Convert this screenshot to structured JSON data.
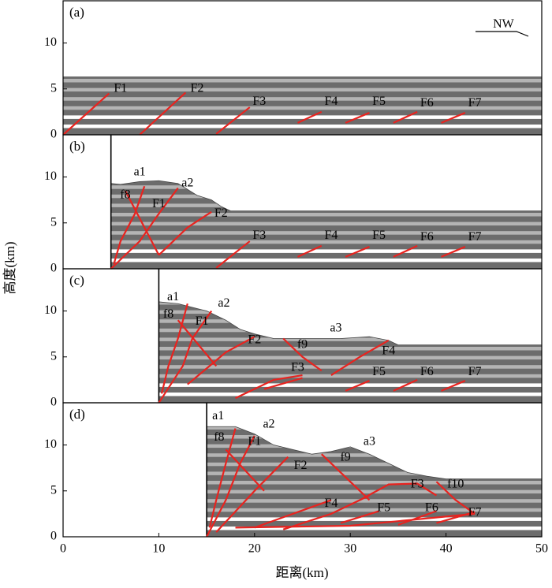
{
  "xlabel": "距离(km)",
  "ylabel": "高度(km)",
  "chart_data": [
    {
      "type": "section",
      "panel": "(a)",
      "xlim": [
        0,
        50
      ],
      "ylim": [
        0,
        14.6
      ],
      "yticks": [
        0,
        5,
        10
      ],
      "xticks": [],
      "surface": {
        "x": [
          0,
          50
        ],
        "y": [
          6.3,
          6.3
        ]
      },
      "annotations": [
        {
          "text": "NW",
          "x": 46,
          "y": 12
        },
        {
          "text": "F1",
          "x": 6,
          "y": 5
        },
        {
          "text": "F2",
          "x": 14,
          "y": 5
        },
        {
          "text": "F3",
          "x": 20.5,
          "y": 3.6
        },
        {
          "text": "F4",
          "x": 28,
          "y": 3.6
        },
        {
          "text": "F5",
          "x": 33,
          "y": 3.6
        },
        {
          "text": "F6",
          "x": 38,
          "y": 3.4
        },
        {
          "text": "F7",
          "x": 43,
          "y": 3.4
        }
      ],
      "faults": [
        {
          "x": [
            0,
            4.8
          ],
          "y": [
            0,
            4.5
          ]
        },
        {
          "x": [
            8,
            12.8
          ],
          "y": [
            0,
            4.6
          ]
        },
        {
          "x": [
            16,
            19.5
          ],
          "y": [
            0.1,
            3
          ]
        },
        {
          "x": [
            24.5,
            27
          ],
          "y": [
            1.3,
            2.5
          ]
        },
        {
          "x": [
            29.5,
            32
          ],
          "y": [
            1.3,
            2.4
          ]
        },
        {
          "x": [
            34.5,
            37
          ],
          "y": [
            1.3,
            2.5
          ]
        },
        {
          "x": [
            39.5,
            42
          ],
          "y": [
            1.3,
            2.4
          ]
        }
      ]
    },
    {
      "type": "section",
      "panel": "(b)",
      "xlim": [
        0,
        50
      ],
      "ylim": [
        0,
        14.6
      ],
      "yticks": [
        0,
        5,
        10
      ],
      "xticks": [],
      "wall_x": 5,
      "surface": {
        "x": [
          5,
          6,
          8,
          10,
          12,
          14,
          15.5,
          16.5,
          17.5,
          50
        ],
        "y": [
          9.3,
          9.2,
          9.5,
          9.6,
          9.3,
          8,
          7.5,
          6.8,
          6.3,
          6.3
        ]
      },
      "annotations": [
        {
          "text": "a1",
          "x": 8,
          "y": 10.5
        },
        {
          "text": "a2",
          "x": 13,
          "y": 9.3
        },
        {
          "text": "f8",
          "x": 6.5,
          "y": 8
        },
        {
          "text": "F1",
          "x": 10,
          "y": 7
        },
        {
          "text": "F2",
          "x": 16.5,
          "y": 6
        },
        {
          "text": "F3",
          "x": 20.5,
          "y": 3.6
        },
        {
          "text": "F4",
          "x": 28,
          "y": 3.6
        },
        {
          "text": "F5",
          "x": 33,
          "y": 3.6
        },
        {
          "text": "F6",
          "x": 38,
          "y": 3.4
        },
        {
          "text": "F7",
          "x": 43,
          "y": 3.4
        }
      ],
      "faults": [
        {
          "x": [
            5.3,
            6,
            7.5,
            8.5
          ],
          "y": [
            0.5,
            3,
            6,
            9
          ]
        },
        {
          "x": [
            5,
            8,
            10,
            12
          ],
          "y": [
            0,
            3,
            6,
            8.8
          ]
        },
        {
          "x": [
            10,
            13,
            15.5
          ],
          "y": [
            1.5,
            4.5,
            6.2
          ]
        },
        {
          "x": [
            6.5,
            10
          ],
          "y": [
            8.5,
            1.5
          ]
        },
        {
          "x": [
            16,
            19.5
          ],
          "y": [
            0.1,
            3
          ]
        },
        {
          "x": [
            24.5,
            27
          ],
          "y": [
            1.3,
            2.5
          ]
        },
        {
          "x": [
            29.5,
            32
          ],
          "y": [
            1.3,
            2.4
          ]
        },
        {
          "x": [
            34.5,
            37
          ],
          "y": [
            1.3,
            2.5
          ]
        },
        {
          "x": [
            39.5,
            42
          ],
          "y": [
            1.3,
            2.4
          ]
        }
      ]
    },
    {
      "type": "section",
      "panel": "(c)",
      "xlim": [
        0,
        50
      ],
      "ylim": [
        0,
        14.6
      ],
      "yticks": [
        0,
        5,
        10
      ],
      "xticks": [],
      "wall_x": 10,
      "surface": {
        "x": [
          10,
          12,
          15,
          17,
          18.5,
          20,
          22,
          25,
          29,
          32,
          34,
          35,
          50
        ],
        "y": [
          11,
          10.8,
          10,
          9,
          8,
          7.5,
          7,
          7,
          7,
          7.2,
          6.8,
          6.3,
          6.3
        ]
      },
      "annotations": [
        {
          "text": "a1",
          "x": 11.5,
          "y": 11.5
        },
        {
          "text": "a2",
          "x": 16.8,
          "y": 10.8
        },
        {
          "text": "f8",
          "x": 11,
          "y": 9.6
        },
        {
          "text": "F1",
          "x": 14.5,
          "y": 8.8
        },
        {
          "text": "F2",
          "x": 20,
          "y": 6.8
        },
        {
          "text": "f9",
          "x": 25,
          "y": 6.3
        },
        {
          "text": "a3",
          "x": 28.5,
          "y": 8.1
        },
        {
          "text": "F3",
          "x": 24.5,
          "y": 3.8
        },
        {
          "text": "F4",
          "x": 34,
          "y": 5.6
        },
        {
          "text": "F5",
          "x": 33,
          "y": 3.3
        },
        {
          "text": "F6",
          "x": 38,
          "y": 3.3
        },
        {
          "text": "F7",
          "x": 43,
          "y": 3.3
        }
      ],
      "faults": [
        {
          "x": [
            10.3,
            11,
            12,
            13
          ],
          "y": [
            1,
            4,
            7,
            10.8
          ]
        },
        {
          "x": [
            10,
            12.5,
            13.5,
            15.5
          ],
          "y": [
            0,
            4,
            7,
            10
          ]
        },
        {
          "x": [
            13,
            17,
            20
          ],
          "y": [
            2,
            5.5,
            7.2
          ]
        },
        {
          "x": [
            12,
            16
          ],
          "y": [
            9,
            4
          ]
        },
        {
          "x": [
            18,
            22,
            25
          ],
          "y": [
            0.5,
            2.5,
            3
          ]
        },
        {
          "x": [
            23,
            25,
            27
          ],
          "y": [
            7,
            5,
            3.5
          ]
        },
        {
          "x": [
            28,
            31,
            34
          ],
          "y": [
            3,
            5,
            6.8
          ]
        },
        {
          "x": [
            21,
            25
          ],
          "y": [
            1.5,
            2.7
          ]
        },
        {
          "x": [
            29.5,
            32
          ],
          "y": [
            1.3,
            2.4
          ]
        },
        {
          "x": [
            34.5,
            37
          ],
          "y": [
            1.3,
            2.5
          ]
        },
        {
          "x": [
            39.5,
            42
          ],
          "y": [
            1.3,
            2.4
          ]
        }
      ]
    },
    {
      "type": "section",
      "panel": "(d)",
      "xlim": [
        0,
        50
      ],
      "ylim": [
        0,
        14.6
      ],
      "yticks": [
        0,
        5,
        10
      ],
      "xticks": [
        0,
        10,
        20,
        30,
        40,
        50
      ],
      "wall_x": 15,
      "surface": {
        "x": [
          15,
          18,
          20,
          22,
          24,
          26,
          28,
          30,
          32,
          34,
          36,
          38,
          40,
          50
        ],
        "y": [
          12,
          12,
          11.2,
          10,
          9.5,
          9,
          9.3,
          9.8,
          9,
          8,
          7,
          6.6,
          6.3,
          6.3
        ]
      },
      "annotations": [
        {
          "text": "a1",
          "x": 16.2,
          "y": 13.1
        },
        {
          "text": "a2",
          "x": 21.5,
          "y": 12.2
        },
        {
          "text": "f8",
          "x": 16.3,
          "y": 10.8
        },
        {
          "text": "F1",
          "x": 20,
          "y": 10.3
        },
        {
          "text": "F2",
          "x": 24.8,
          "y": 7.7
        },
        {
          "text": "f9",
          "x": 29.5,
          "y": 8.6
        },
        {
          "text": "a3",
          "x": 32,
          "y": 10.3
        },
        {
          "text": "F3",
          "x": 37,
          "y": 5.7
        },
        {
          "text": "f10",
          "x": 41,
          "y": 5.7
        },
        {
          "text": "F4",
          "x": 28,
          "y": 3.6
        },
        {
          "text": "F5",
          "x": 33.5,
          "y": 3.1
        },
        {
          "text": "F6",
          "x": 38.5,
          "y": 3.1
        },
        {
          "text": "F7",
          "x": 43,
          "y": 2.6
        }
      ],
      "faults": [
        {
          "x": [
            15.3,
            16,
            17,
            18
          ],
          "y": [
            1,
            4,
            8,
            11.8
          ]
        },
        {
          "x": [
            15,
            17,
            18.5,
            20
          ],
          "y": [
            0,
            4,
            8,
            11
          ]
        },
        {
          "x": [
            16,
            20,
            23.5
          ],
          "y": [
            0.5,
            5,
            8.7
          ]
        },
        {
          "x": [
            17,
            21
          ],
          "y": [
            9.5,
            5
          ]
        },
        {
          "x": [
            27,
            29.5,
            32
          ],
          "y": [
            9,
            6.5,
            4
          ]
        },
        {
          "x": [
            20,
            24,
            28
          ],
          "y": [
            1,
            2.5,
            4
          ]
        },
        {
          "x": [
            23,
            28,
            32
          ],
          "y": [
            0.8,
            2.5,
            4.5
          ]
        },
        {
          "x": [
            31,
            34,
            37,
            39
          ],
          "y": [
            4,
            5.7,
            5.8,
            4.5
          ]
        },
        {
          "x": [
            39,
            41,
            43
          ],
          "y": [
            6,
            4,
            2.5
          ]
        },
        {
          "x": [
            29,
            33
          ],
          "y": [
            1.5,
            2.8
          ]
        },
        {
          "x": [
            35,
            39
          ],
          "y": [
            1.3,
            2.8
          ]
        },
        {
          "x": [
            39,
            43
          ],
          "y": [
            1.5,
            2.7
          ]
        },
        {
          "x": [
            18,
            30,
            43
          ],
          "y": [
            1,
            1.2,
            2.5
          ]
        }
      ]
    }
  ]
}
